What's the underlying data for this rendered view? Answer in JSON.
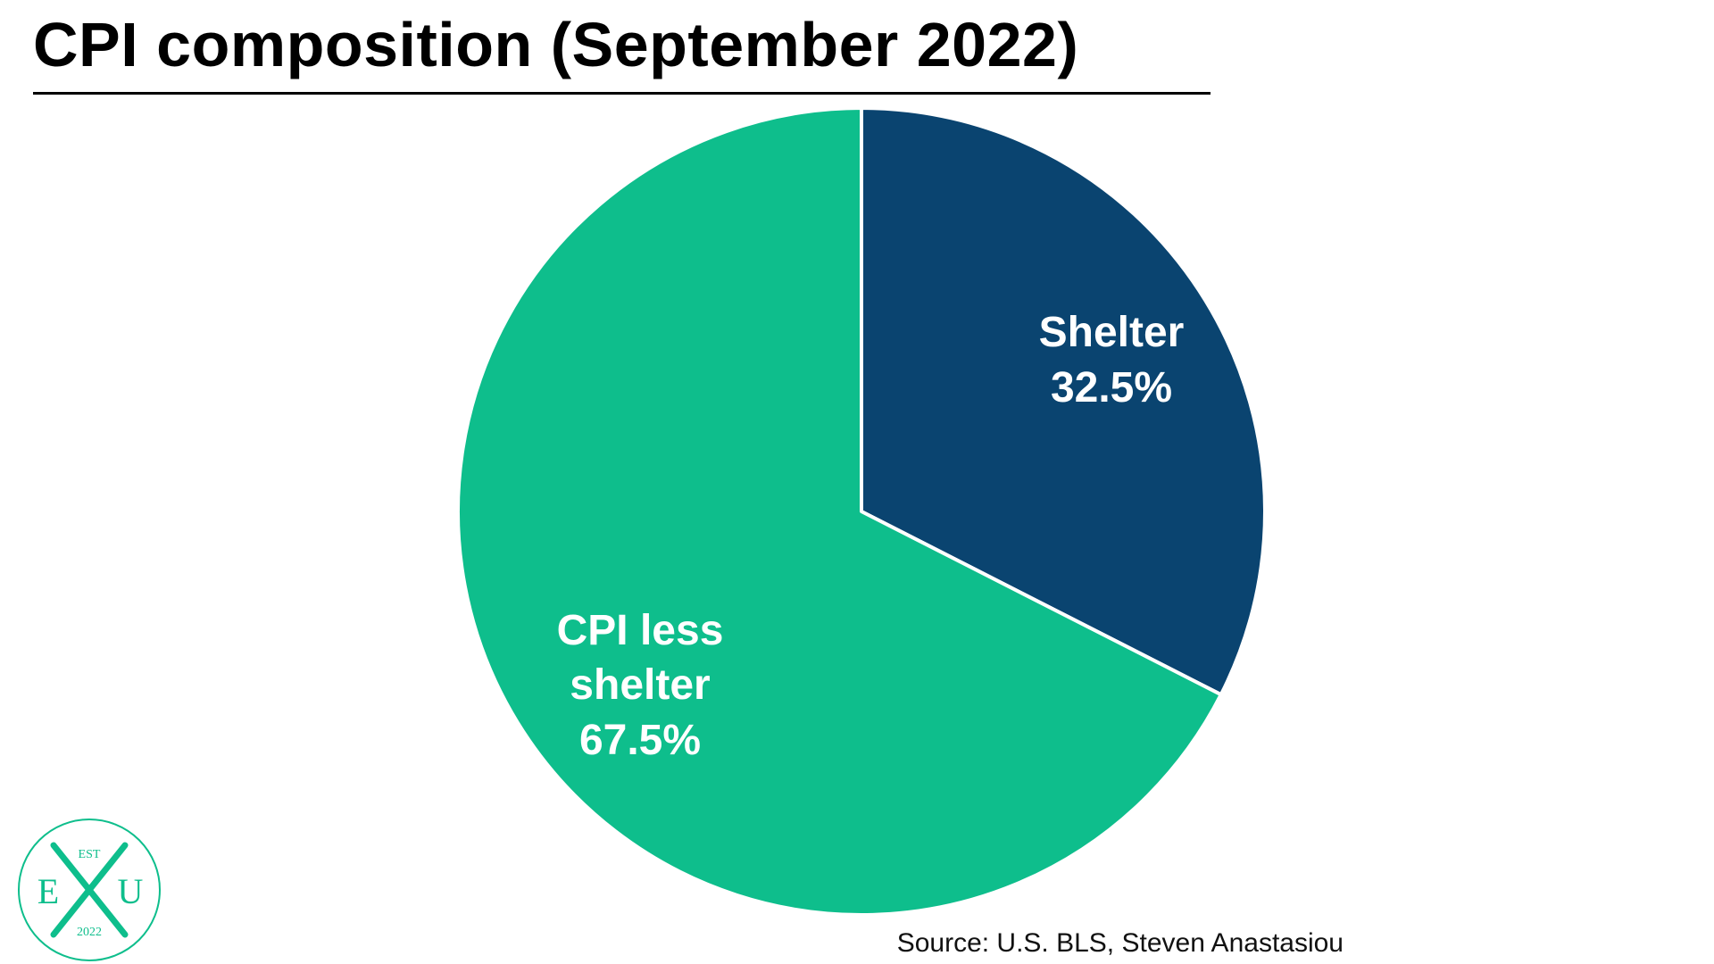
{
  "title": "CPI composition (September 2022)",
  "source": "Source: U.S. BLS, Steven Anastasiou",
  "colors": {
    "shelter": "#0a4470",
    "cpi_less_shelter": "#0ebe8c",
    "logo": "#0ebe8c"
  },
  "logo": {
    "top": "EST",
    "left": "E",
    "right": "U",
    "bottom": "2022"
  },
  "chart_data": {
    "type": "pie",
    "title": "CPI composition (September 2022)",
    "slices": [
      {
        "name": "Shelter",
        "value": 32.5,
        "label": "32.5%"
      },
      {
        "name": "CPI less shelter",
        "value": 67.5,
        "label": "67.5%"
      }
    ],
    "start_angle": "top (12 o'clock), clockwise",
    "legend": "none"
  }
}
